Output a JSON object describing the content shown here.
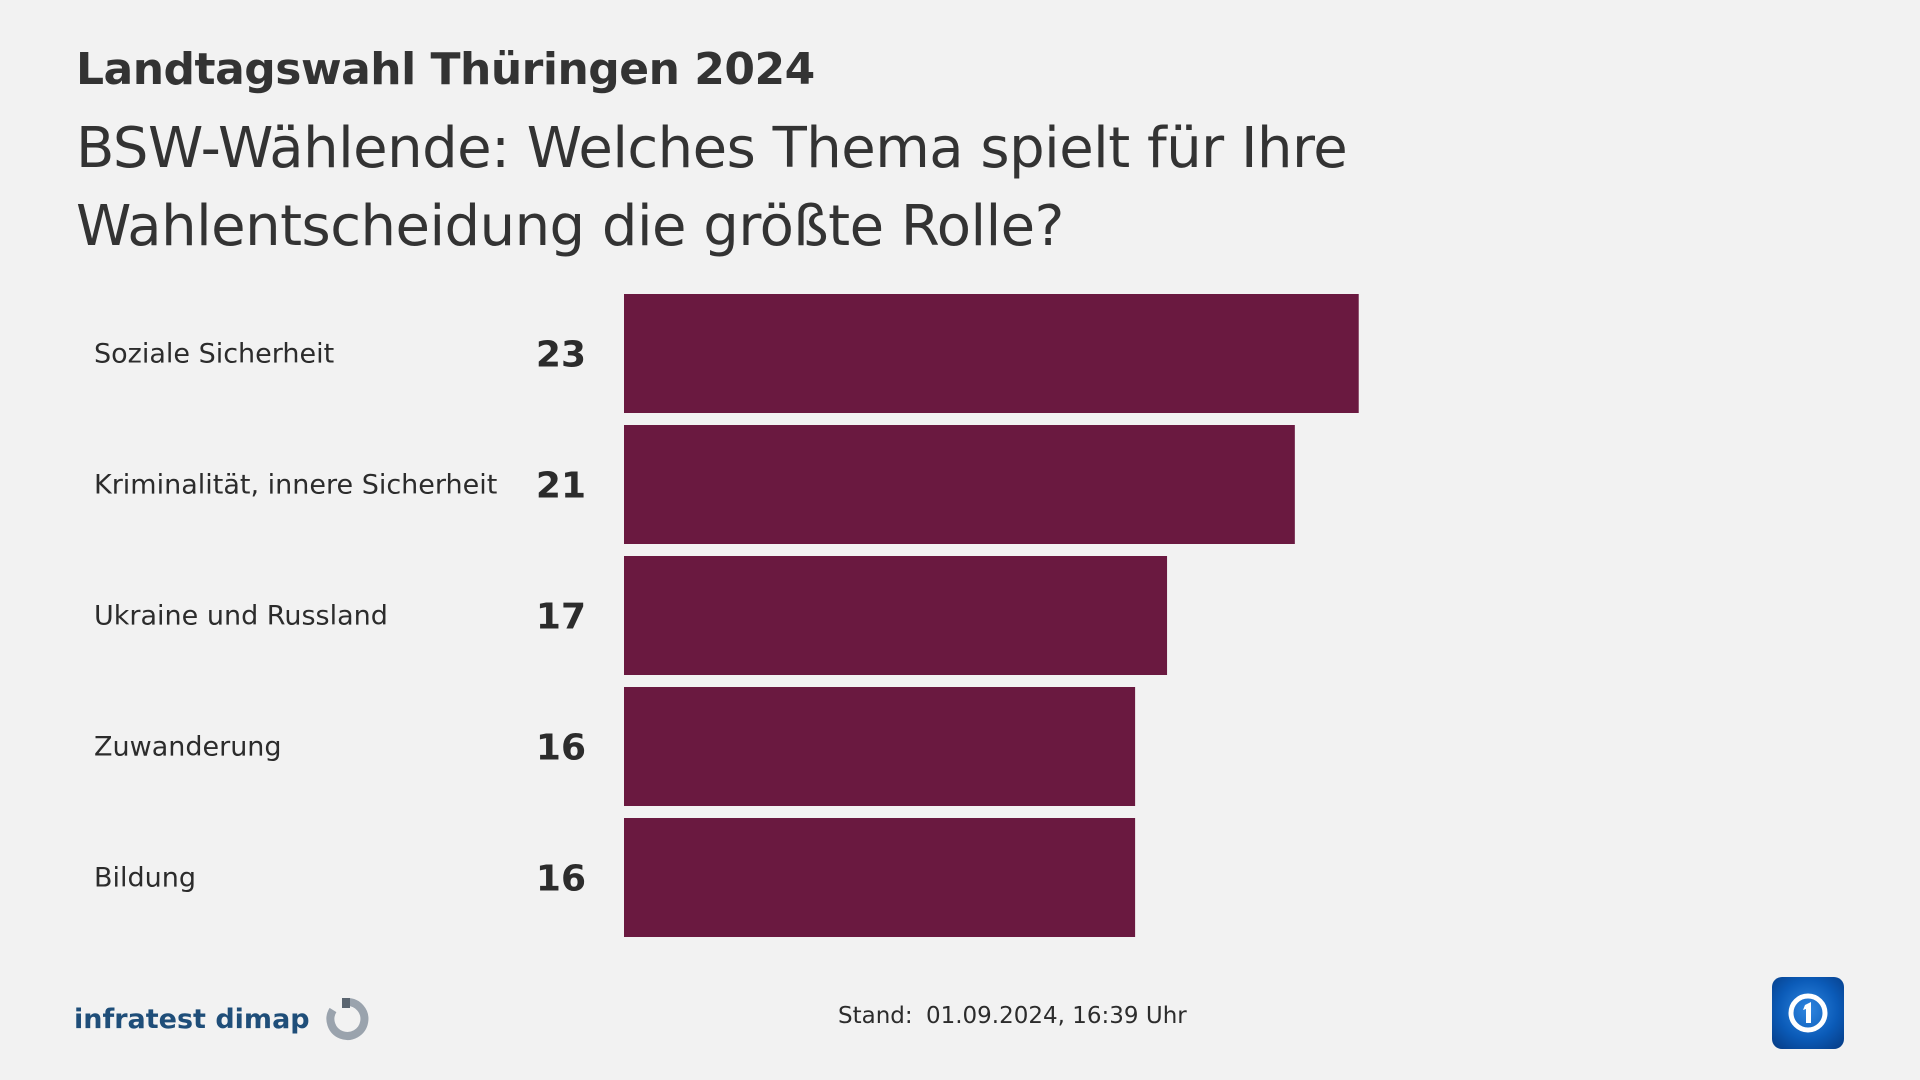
{
  "header": {
    "kicker": "Landtagswahl Thüringen 2024",
    "title": "BSW-Wählende: Welches Thema spielt für Ihre Wahlentscheidung die größte Rolle?"
  },
  "colors": {
    "bar": "#6a1940",
    "background": "#f2f2f2",
    "source_text": "#1f4e79"
  },
  "chart_data": {
    "type": "bar",
    "orientation": "horizontal",
    "title": "BSW-Wählende: Welches Thema spielt für Ihre Wahlentscheidung die größte Rolle?",
    "categories": [
      "Soziale Sicherheit",
      "Kriminalität, innere Sicherheit",
      "Ukraine und Russland",
      "Zuwanderung",
      "Bildung"
    ],
    "values": [
      23,
      21,
      17,
      16,
      16
    ],
    "xlim": [
      0,
      36
    ],
    "grid": false,
    "legend": "none"
  },
  "footer": {
    "source": "infratest dimap",
    "stand_label": "Stand:",
    "stand_value": "01.09.2024, 16:39 Uhr",
    "source_icon": "infratest-dimap-logo-icon",
    "brand_icon": "das-erste-logo-icon"
  }
}
